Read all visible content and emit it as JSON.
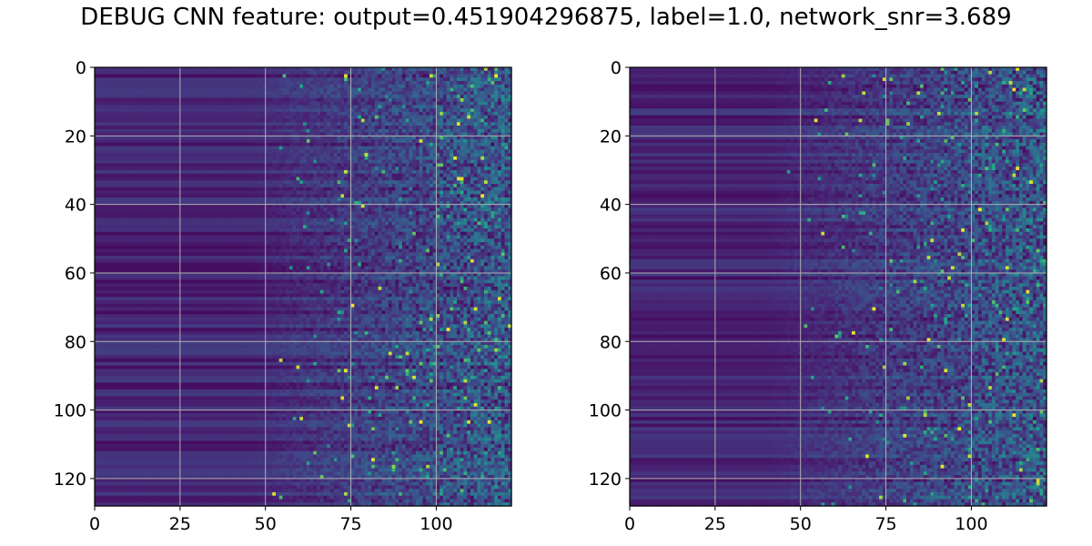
{
  "figure": {
    "title": "DEBUG CNN feature: output=0.451904296875, label=1.0, network_snr=3.689"
  },
  "chart_data": [
    {
      "type": "heatmap",
      "title": "",
      "xlabel": "",
      "ylabel": "",
      "xlim": [
        0,
        122
      ],
      "ylim": [
        128,
        0
      ],
      "n_cols": 122,
      "n_rows": 128,
      "x_ticks": [
        0,
        25,
        50,
        75,
        100
      ],
      "y_ticks": [
        0,
        20,
        40,
        60,
        80,
        100,
        120
      ],
      "grid": true,
      "colormap": "viridis",
      "value_profile": "rows mostly uniform dark purple for columns 0-45, increasingly noisy toward the right with scattered bright cyan/yellow pixels beyond column 70"
    },
    {
      "type": "heatmap",
      "title": "",
      "xlabel": "",
      "ylabel": "",
      "xlim": [
        0,
        122
      ],
      "ylim": [
        128,
        0
      ],
      "n_cols": 122,
      "n_rows": 128,
      "x_ticks": [
        0,
        25,
        50,
        75,
        100
      ],
      "y_ticks": [
        0,
        20,
        40,
        60,
        80,
        100,
        120
      ],
      "grid": true,
      "colormap": "viridis",
      "value_profile": "dark row-striped region for columns 0-40, noise increasing toward the right with scattered bright pixels beyond column 65"
    }
  ]
}
